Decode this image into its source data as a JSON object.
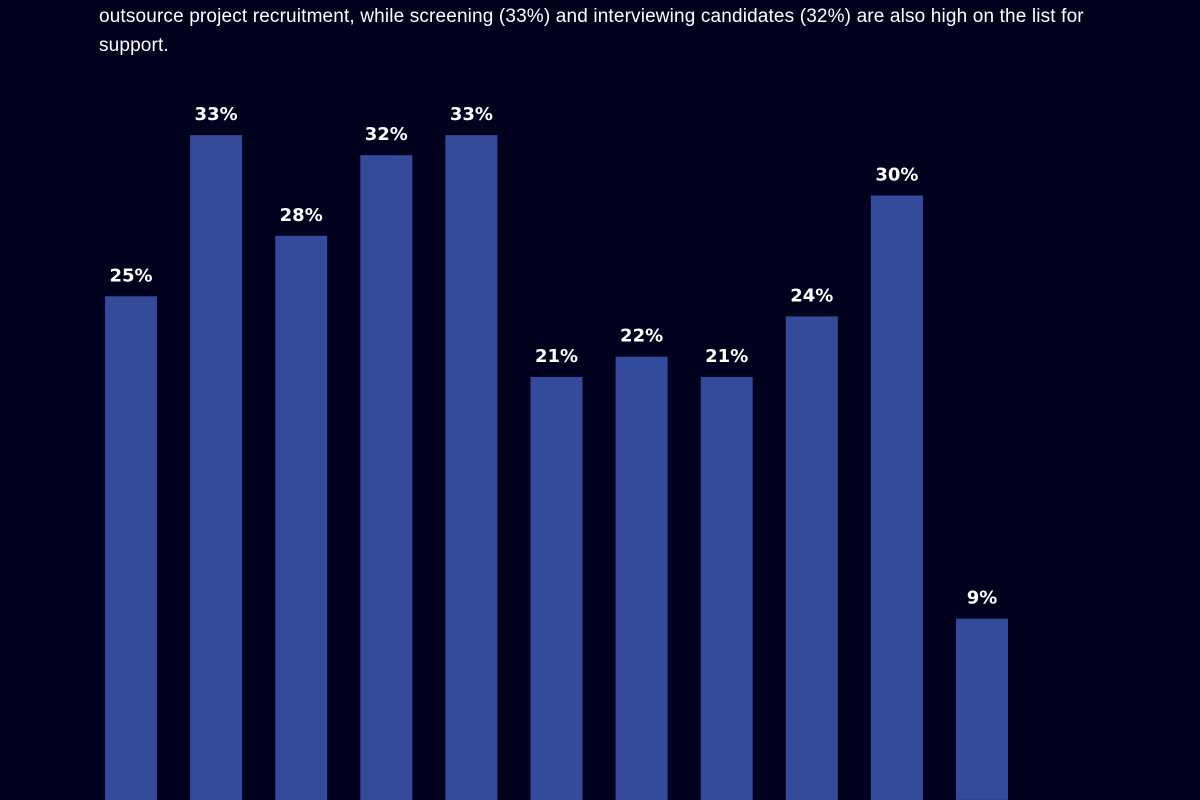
{
  "intro_text": "outsource project recruitment, while screening (33%) and interviewing candidates (32%) are also high on the list for support.",
  "chart_data": {
    "type": "bar",
    "title": "",
    "xlabel": "",
    "ylabel": "",
    "categories": [
      "",
      "",
      "",
      "",
      "",
      "",
      "",
      "",
      "",
      "",
      ""
    ],
    "values": [
      25,
      33,
      28,
      32,
      33,
      21,
      22,
      21,
      24,
      30,
      9
    ],
    "labels": [
      "25%",
      "33%",
      "28%",
      "32%",
      "33%",
      "21%",
      "22%",
      "21%",
      "24%",
      "30%",
      "9%"
    ],
    "ylim": [
      0,
      52
    ],
    "grid": false,
    "legend": "none",
    "bar_color": "#344a9a",
    "label_color": "#ffffff",
    "background": "#02021e"
  }
}
